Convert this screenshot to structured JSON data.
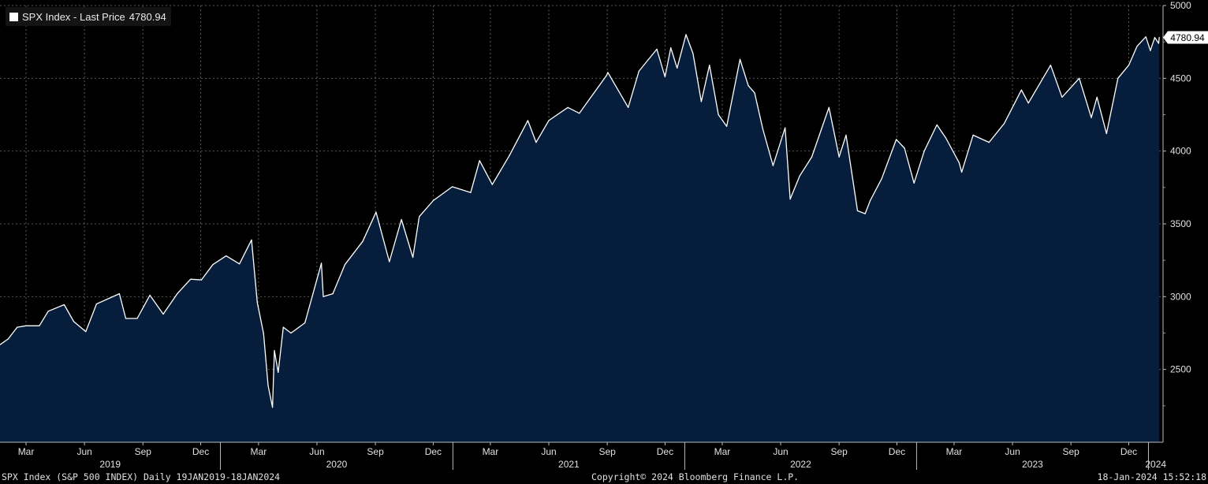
{
  "legend": {
    "label": "SPX Index - Last Price",
    "value": "4780.94",
    "swatch_color": "#ffffff"
  },
  "footer": {
    "left": "SPX Index (S&P 500 INDEX)  Daily 19JAN2019-18JAN2024",
    "center": "Copyright© 2024 Bloomberg Finance L.P.",
    "right": "18-Jan-2024 15:52:18"
  },
  "chart_data": {
    "type": "area",
    "title": "SPX Index - Last Price",
    "last_value_label": "4780.94",
    "colors": {
      "background": "#000000",
      "line": "#ffffff",
      "fill": "#061e3c",
      "grid": "#5a5a5a"
    },
    "ylim": [
      2000,
      5000
    ],
    "yticks": [
      2500,
      3000,
      3500,
      4000,
      4500,
      5000
    ],
    "xlim": [
      "2019-01-19",
      "2024-01-24"
    ],
    "x_month_ticks": [
      {
        "date": "2019-03-01",
        "label": "Mar"
      },
      {
        "date": "2019-06-01",
        "label": "Jun"
      },
      {
        "date": "2019-09-01",
        "label": "Sep"
      },
      {
        "date": "2019-12-01",
        "label": "Dec"
      },
      {
        "date": "2020-03-01",
        "label": "Mar"
      },
      {
        "date": "2020-06-01",
        "label": "Jun"
      },
      {
        "date": "2020-09-01",
        "label": "Sep"
      },
      {
        "date": "2020-12-01",
        "label": "Dec"
      },
      {
        "date": "2021-03-01",
        "label": "Mar"
      },
      {
        "date": "2021-06-01",
        "label": "Jun"
      },
      {
        "date": "2021-09-01",
        "label": "Sep"
      },
      {
        "date": "2021-12-01",
        "label": "Dec"
      },
      {
        "date": "2022-03-01",
        "label": "Mar"
      },
      {
        "date": "2022-06-01",
        "label": "Jun"
      },
      {
        "date": "2022-09-01",
        "label": "Sep"
      },
      {
        "date": "2022-12-01",
        "label": "Dec"
      },
      {
        "date": "2023-03-01",
        "label": "Mar"
      },
      {
        "date": "2023-06-01",
        "label": "Jun"
      },
      {
        "date": "2023-09-01",
        "label": "Sep"
      },
      {
        "date": "2023-12-01",
        "label": "Dec"
      }
    ],
    "x_year_labels": [
      {
        "year": "2019",
        "start": "2019-01-19",
        "end": "2020-01-01"
      },
      {
        "year": "2020",
        "start": "2020-01-01",
        "end": "2021-01-01"
      },
      {
        "year": "2021",
        "start": "2021-01-01",
        "end": "2022-01-01"
      },
      {
        "year": "2022",
        "start": "2022-01-01",
        "end": "2023-01-01"
      },
      {
        "year": "2023",
        "start": "2023-01-01",
        "end": "2024-01-01"
      },
      {
        "year": "2024",
        "start": "2024-01-01",
        "end": "2024-01-24"
      }
    ],
    "series": [
      {
        "x": [
          "2019-01-19",
          "2019-02-01",
          "2019-02-15",
          "2019-03-01",
          "2019-03-22",
          "2019-04-05",
          "2019-04-30",
          "2019-05-15",
          "2019-06-03",
          "2019-06-20",
          "2019-07-26",
          "2019-08-05",
          "2019-08-23",
          "2019-09-12",
          "2019-10-03",
          "2019-10-25",
          "2019-11-15",
          "2019-12-02",
          "2019-12-20",
          "2020-01-10",
          "2020-01-31",
          "2020-02-19",
          "2020-02-28",
          "2020-03-09",
          "2020-03-16",
          "2020-03-23",
          "2020-03-26",
          "2020-04-01",
          "2020-04-09",
          "2020-04-21",
          "2020-05-13",
          "2020-06-08",
          "2020-06-11",
          "2020-06-26",
          "2020-07-15",
          "2020-08-12",
          "2020-09-02",
          "2020-09-23",
          "2020-10-12",
          "2020-10-30",
          "2020-11-09",
          "2020-12-01",
          "2020-12-31",
          "2021-01-29",
          "2021-02-12",
          "2021-03-04",
          "2021-03-31",
          "2021-04-29",
          "2021-05-12",
          "2021-06-01",
          "2021-07-01",
          "2021-07-19",
          "2021-08-31",
          "2021-09-02",
          "2021-10-04",
          "2021-10-21",
          "2021-11-18",
          "2021-12-01",
          "2021-12-10",
          "2021-12-20",
          "2022-01-03",
          "2022-01-14",
          "2022-01-27",
          "2022-02-09",
          "2022-02-23",
          "2022-03-08",
          "2022-03-29",
          "2022-04-11",
          "2022-04-21",
          "2022-05-04",
          "2022-05-20",
          "2022-06-08",
          "2022-06-16",
          "2022-07-01",
          "2022-07-20",
          "2022-08-16",
          "2022-09-01",
          "2022-09-12",
          "2022-09-30",
          "2022-10-12",
          "2022-10-20",
          "2022-11-07",
          "2022-11-30",
          "2022-12-13",
          "2022-12-28",
          "2023-01-13",
          "2023-02-02",
          "2023-02-16",
          "2023-03-09",
          "2023-03-13",
          "2023-03-31",
          "2023-04-25",
          "2023-05-19",
          "2023-06-15",
          "2023-06-26",
          "2023-07-31",
          "2023-08-18",
          "2023-09-14",
          "2023-10-03",
          "2023-10-12",
          "2023-10-27",
          "2023-11-14",
          "2023-12-01",
          "2023-12-14",
          "2023-12-28",
          "2024-01-04",
          "2024-01-11",
          "2024-01-17",
          "2024-01-18"
        ],
        "y": [
          2670,
          2710,
          2790,
          2800,
          2800,
          2900,
          2945,
          2830,
          2760,
          2950,
          3020,
          2850,
          2850,
          3010,
          2880,
          3020,
          3120,
          3115,
          3220,
          3280,
          3225,
          3390,
          2960,
          2745,
          2390,
          2240,
          2630,
          2480,
          2790,
          2750,
          2820,
          3230,
          3000,
          3020,
          3220,
          3380,
          3580,
          3240,
          3530,
          3270,
          3550,
          3660,
          3755,
          3715,
          3935,
          3770,
          3970,
          4210,
          4060,
          4210,
          4300,
          4260,
          4520,
          4540,
          4300,
          4550,
          4700,
          4510,
          4710,
          4570,
          4800,
          4670,
          4340,
          4590,
          4250,
          4170,
          4630,
          4450,
          4400,
          4150,
          3900,
          4160,
          3670,
          3830,
          3960,
          4300,
          3960,
          4110,
          3590,
          3570,
          3660,
          3810,
          4080,
          4020,
          3780,
          4000,
          4180,
          4090,
          3920,
          3855,
          4110,
          4060,
          4190,
          4420,
          4330,
          4590,
          4370,
          4500,
          4230,
          4370,
          4120,
          4500,
          4590,
          4720,
          4785,
          4690,
          4780,
          4740,
          4780.94
        ]
      }
    ]
  }
}
